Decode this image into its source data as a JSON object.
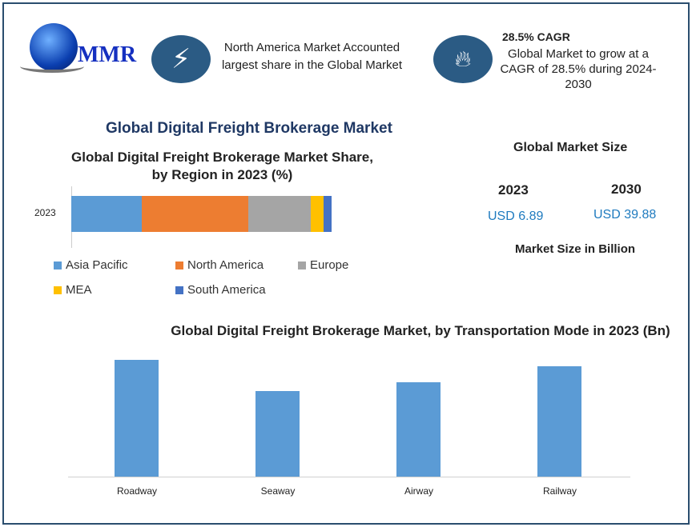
{
  "logo": {
    "text": "MMR"
  },
  "highlights": [
    {
      "icon": "lightning-icon",
      "title": "",
      "text": "North America Market Accounted largest share in the Global Market"
    },
    {
      "icon": "flame-icon",
      "title": "28.5% CAGR",
      "text": "Global Market to grow at a CAGR of 28.5% during 2024-2030"
    }
  ],
  "main_title": "Global Digital Freight Brokerage Market",
  "market_size": {
    "title": "Global Market Size",
    "years": [
      "2023",
      "2030"
    ],
    "values": [
      "USD 6.89",
      "USD 39.88"
    ],
    "note": "Market Size in Billion"
  },
  "chart_data": [
    {
      "type": "bar",
      "orientation": "horizontal",
      "stacked": true,
      "title": "Global Digital Freight Brokerage Market Share, by Region in 2023 (%)",
      "categories": [
        "2023"
      ],
      "series": [
        {
          "name": "Asia Pacific",
          "values": [
            27
          ],
          "color": "#5b9bd5"
        },
        {
          "name": "North America",
          "values": [
            41
          ],
          "color": "#ed7d31"
        },
        {
          "name": "Europe",
          "values": [
            24
          ],
          "color": "#a5a5a5"
        },
        {
          "name": "MEA",
          "values": [
            5
          ],
          "color": "#ffc000"
        },
        {
          "name": "South America",
          "values": [
            3
          ],
          "color": "#4472c4"
        }
      ],
      "legend": "bottom"
    },
    {
      "type": "bar",
      "title": "Global Digital Freight Brokerage Market, by Transportation Mode  in 2023 (Bn)",
      "categories": [
        "Roadway",
        "Seaway",
        "Airway",
        "Railway"
      ],
      "values": [
        1.97,
        1.45,
        1.6,
        1.87
      ],
      "color": "#5b9bd5",
      "grid": false
    }
  ]
}
